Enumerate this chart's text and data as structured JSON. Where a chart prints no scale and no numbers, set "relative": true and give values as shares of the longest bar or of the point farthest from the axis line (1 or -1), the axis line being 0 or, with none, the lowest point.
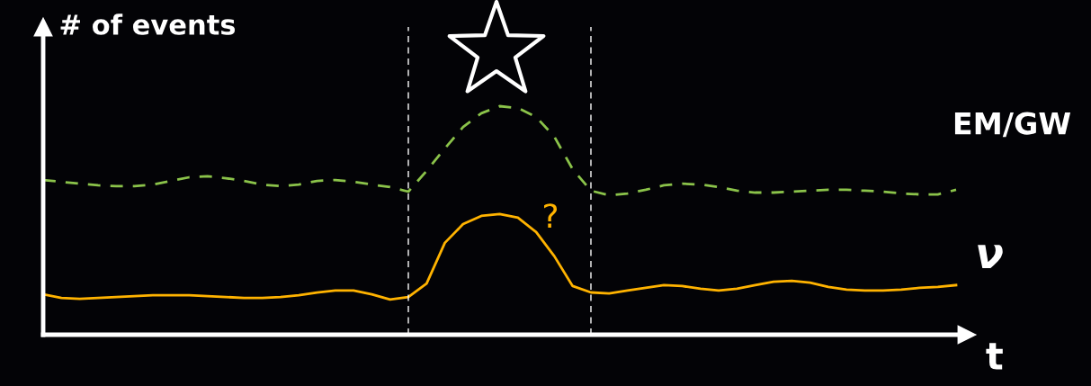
{
  "chart_data": {
    "type": "line",
    "relative": true,
    "ylabel": "# of events",
    "xlabel": "t",
    "marker": "none",
    "categories": [
      null,
      null,
      null,
      null,
      null,
      null,
      null,
      null,
      null,
      null,
      null,
      null,
      null,
      null,
      null,
      null,
      null,
      null,
      null,
      null,
      null,
      null,
      null,
      null,
      null,
      null,
      null,
      null,
      null,
      null,
      null,
      null,
      null,
      null,
      null,
      null,
      null,
      null,
      null,
      null,
      null,
      null,
      null,
      null,
      null,
      null,
      null,
      null,
      null,
      null,
      null
    ],
    "series": [
      {
        "name": "EM/GW",
        "color": "#8bc34a",
        "line_style": "dashed",
        "values": [
          0.677,
          0.669,
          0.661,
          0.654,
          0.65,
          0.65,
          0.657,
          0.673,
          0.689,
          0.693,
          0.685,
          0.673,
          0.657,
          0.65,
          0.657,
          0.673,
          0.677,
          0.669,
          0.657,
          0.646,
          0.626,
          0.717,
          0.815,
          0.909,
          0.969,
          1.0,
          0.992,
          0.953,
          0.866,
          0.724,
          0.63,
          0.61,
          0.618,
          0.634,
          0.654,
          0.661,
          0.657,
          0.646,
          0.63,
          0.622,
          0.622,
          0.626,
          0.63,
          0.634,
          0.634,
          0.63,
          0.626,
          0.618,
          0.614,
          0.614,
          0.634
        ]
      },
      {
        "name": "ν",
        "color": "#ffb300",
        "line_style": "solid",
        "values": [
          0.177,
          0.161,
          0.157,
          0.161,
          0.165,
          0.169,
          0.173,
          0.173,
          0.173,
          0.169,
          0.165,
          0.161,
          0.161,
          0.165,
          0.173,
          0.185,
          0.193,
          0.193,
          0.177,
          0.154,
          0.165,
          0.224,
          0.402,
          0.484,
          0.52,
          0.528,
          0.512,
          0.449,
          0.343,
          0.213,
          0.185,
          0.181,
          0.193,
          0.205,
          0.217,
          0.213,
          0.201,
          0.193,
          0.201,
          0.217,
          0.232,
          0.236,
          0.228,
          0.209,
          0.197,
          0.193,
          0.193,
          0.197,
          0.205,
          0.209,
          0.217
        ]
      }
    ],
    "annotations": [
      "?"
    ]
  }
}
